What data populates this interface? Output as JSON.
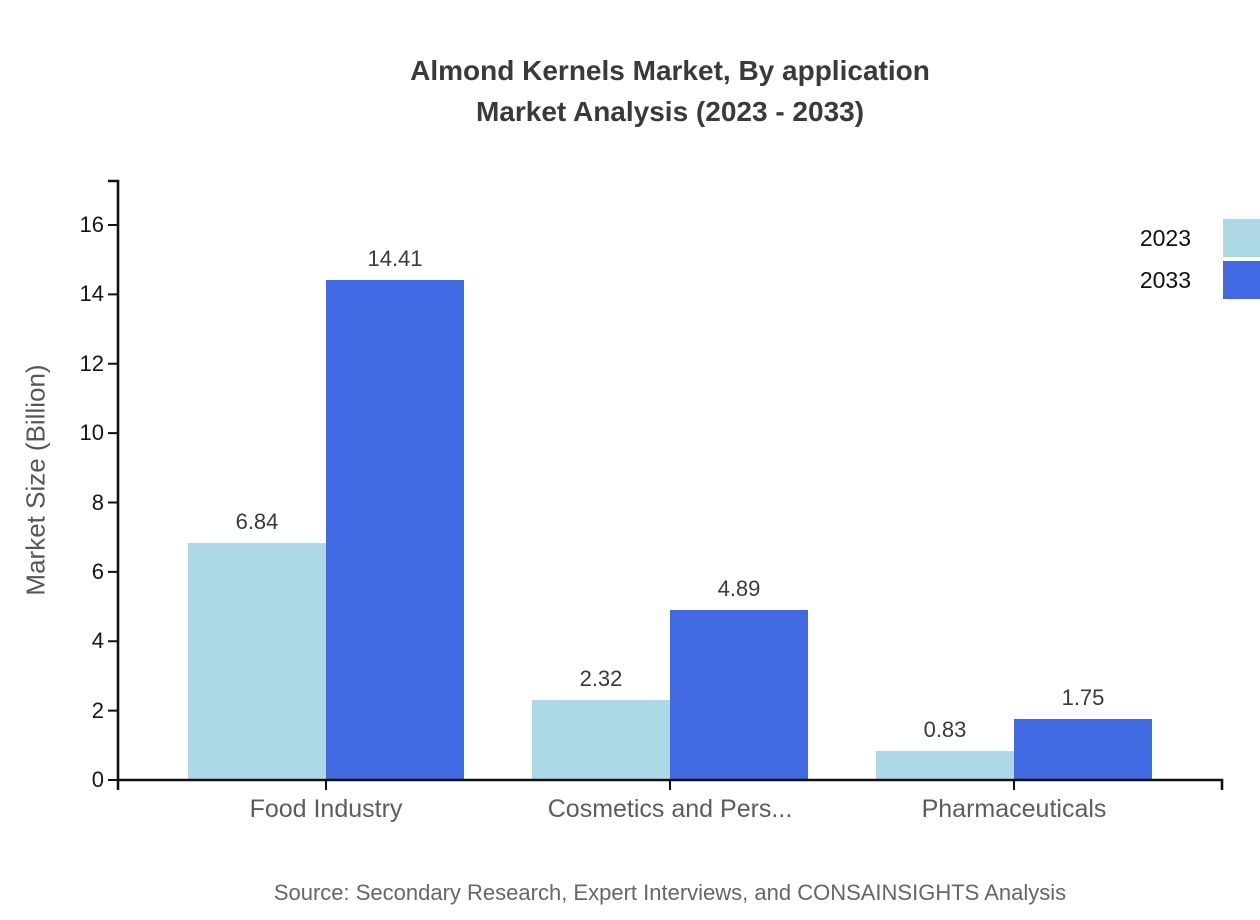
{
  "title": {
    "line1": "Almond Kernels Market, By application",
    "line2": "Market Analysis (2023 - 2033)"
  },
  "source_note": "Source: Secondary Research, Expert Interviews, and CONSAINSIGHTS Analysis",
  "chart_data": {
    "type": "bar",
    "title": "Almond Kernels Market, By application Market Analysis (2023 - 2033)",
    "categories": [
      "Food Industry",
      "Cosmetics and Pers...",
      "Pharmaceuticals"
    ],
    "series": [
      {
        "name": "2023",
        "color": "#ADD8E6",
        "values": [
          6.84,
          2.32,
          0.83
        ]
      },
      {
        "name": "2033",
        "color": "#4169E1",
        "values": [
          14.41,
          4.89,
          1.75
        ]
      }
    ],
    "value_labels": [
      "6.84",
      "14.41",
      "2.32",
      "4.89",
      "0.83",
      "1.75"
    ],
    "xlabel": "",
    "ylabel": "Market Size (Billion)",
    "ylim": [
      0,
      16
    ],
    "yticks": [
      0,
      2,
      4,
      6,
      8,
      10,
      12,
      14,
      16
    ],
    "grid": false,
    "legend_position": "top-right",
    "axis_color": "#111111"
  }
}
